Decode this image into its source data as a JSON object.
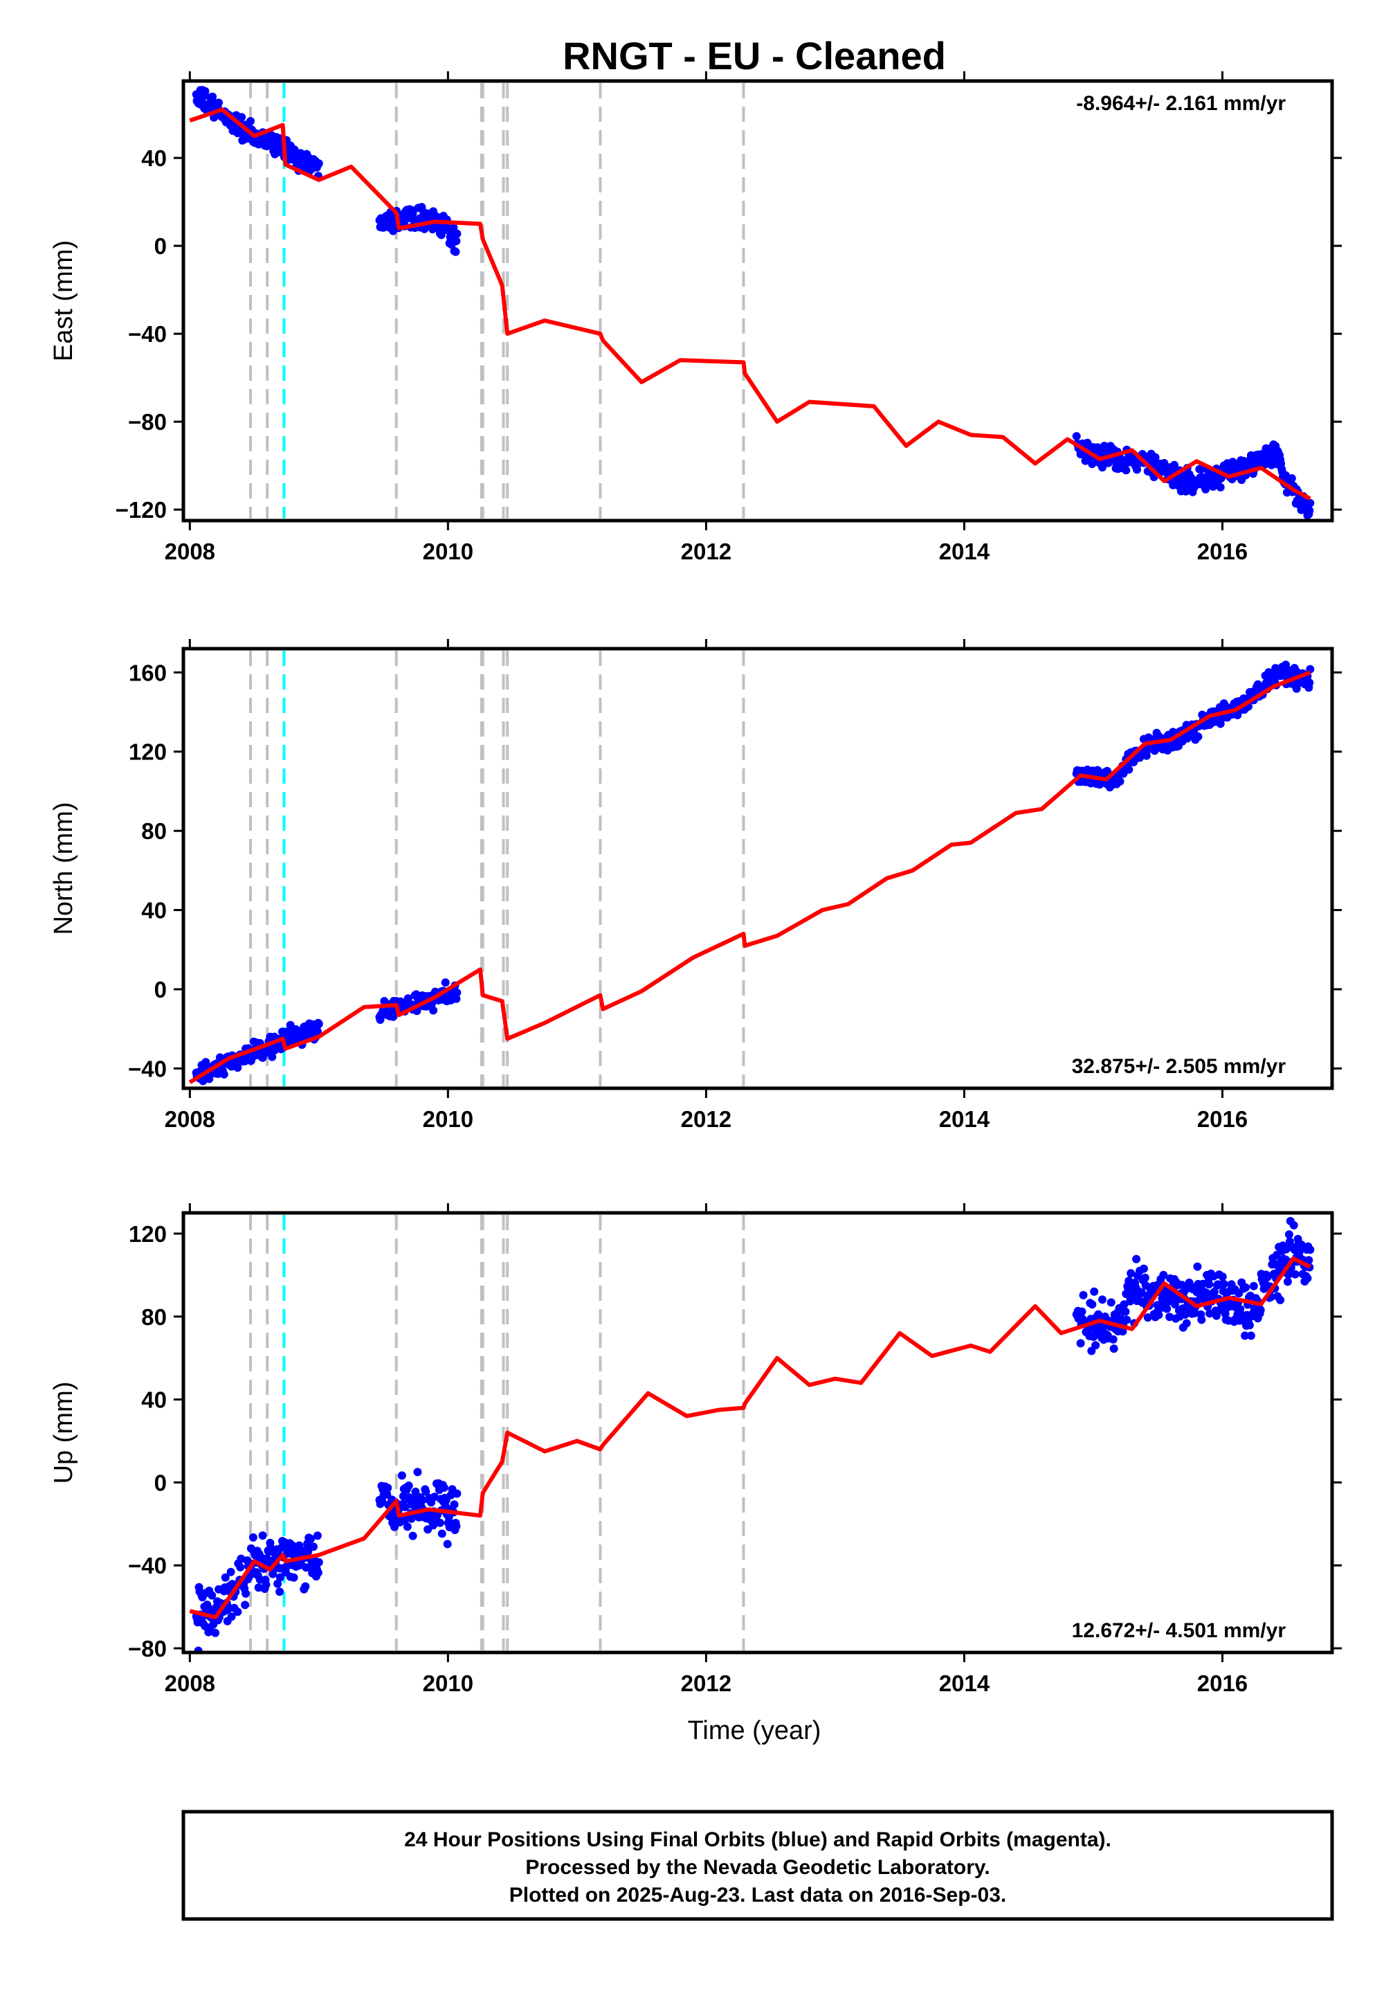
{
  "title": "RNGT  - EU - Cleaned",
  "xlabel": "Time (year)",
  "footer": {
    "line1": "24 Hour Positions Using Final Orbits (blue) and Rapid Orbits (magenta).",
    "line2": "Processed by the Nevada Geodetic Laboratory.",
    "line3": "Plotted on 2025-Aug-23. Last data on 2016-Sep-03."
  },
  "colors": {
    "data_points": "#0000ff",
    "model_line": "#ff0000",
    "event_line": "#c0c0c0",
    "equipment_line": "#00ffff",
    "frame": "#000000"
  },
  "chart_data": [
    {
      "type": "scatter",
      "panel": "east",
      "ylabel": "East (mm)",
      "rate_label": "-8.964+/- 2.161 mm/yr",
      "xlim": [
        2007.95,
        2016.85
      ],
      "ylim": [
        -125,
        75
      ],
      "xticks": [
        2008,
        2010,
        2012,
        2014,
        2016
      ],
      "yticks": [
        -120,
        -80,
        -40,
        0,
        40
      ],
      "events": [
        2008.47,
        2008.6,
        2009.6,
        2010.26,
        2010.27,
        2010.43,
        2010.46,
        2011.18,
        2012.29
      ],
      "equipment_events": [
        2008.73
      ],
      "series": [
        {
          "name": "Final Orbits (blue)",
          "segments": [
            {
              "x": [
                2008.05,
                2008.2,
                2008.35,
                2008.5,
                2008.62,
                2008.72,
                2008.85,
                2009.0
              ],
              "y": [
                68,
                62,
                56,
                49,
                48,
                44,
                40,
                35
              ]
            },
            {
              "x": [
                2009.47,
                2009.6,
                2009.75,
                2009.9,
                2010.0,
                2010.07
              ],
              "y": [
                13,
                12,
                14,
                11,
                6,
                1
              ]
            },
            {
              "x": [
                2014.87,
                2015.0,
                2015.2,
                2015.4,
                2015.6,
                2015.75,
                2015.9,
                2016.1,
                2016.3,
                2016.42,
                2016.5,
                2016.6,
                2016.68
              ],
              "y": [
                -92,
                -95,
                -97,
                -98,
                -105,
                -107,
                -106,
                -103,
                -97,
                -94,
                -109,
                -116,
                -119
              ]
            }
          ]
        }
      ],
      "model": {
        "x": [
          2008.0,
          2008.25,
          2008.5,
          2008.72,
          2008.74,
          2009.0,
          2009.25,
          2009.6,
          2009.62,
          2009.9,
          2010.25,
          2010.27,
          2010.42,
          2010.46,
          2010.75,
          2011.18,
          2011.2,
          2011.5,
          2011.8,
          2012.29,
          2012.3,
          2012.55,
          2012.8,
          2013.3,
          2013.55,
          2013.8,
          2014.05,
          2014.3,
          2014.55,
          2014.8,
          2015.05,
          2015.3,
          2015.55,
          2015.8,
          2016.05,
          2016.3,
          2016.55,
          2016.68
        ],
        "y": [
          57,
          62,
          50,
          55,
          37,
          30,
          36,
          15,
          8,
          11,
          10,
          3,
          -18,
          -40,
          -34,
          -40,
          -43,
          -62,
          -52,
          -53,
          -58,
          -80,
          -71,
          -73,
          -91,
          -80,
          -86,
          -87,
          -99,
          -88,
          -97,
          -93,
          -107,
          -98,
          -105,
          -101,
          -111,
          -115
        ]
      }
    },
    {
      "type": "scatter",
      "panel": "north",
      "ylabel": "North (mm)",
      "rate_label": "32.875+/- 2.505 mm/yr",
      "xlim": [
        2007.95,
        2016.85
      ],
      "ylim": [
        -50,
        172
      ],
      "xticks": [
        2008,
        2010,
        2012,
        2014,
        2016
      ],
      "yticks": [
        -40,
        0,
        40,
        80,
        120,
        160
      ],
      "events": [
        2008.47,
        2008.6,
        2009.6,
        2010.26,
        2010.27,
        2010.43,
        2010.46,
        2011.18,
        2012.29
      ],
      "equipment_events": [
        2008.73
      ],
      "series": [
        {
          "name": "Final Orbits (blue)",
          "segments": [
            {
              "x": [
                2008.05,
                2008.2,
                2008.35,
                2008.5,
                2008.65,
                2008.8,
                2009.0
              ],
              "y": [
                -44,
                -41,
                -36,
                -32,
                -28,
                -24,
                -20
              ]
            },
            {
              "x": [
                2009.47,
                2009.6,
                2009.75,
                2009.9,
                2010.07
              ],
              "y": [
                -13,
                -9,
                -7,
                -4,
                -1
              ]
            },
            {
              "x": [
                2014.87,
                2015.0,
                2015.15,
                2015.3,
                2015.5,
                2015.7,
                2015.9,
                2016.1,
                2016.3,
                2016.45,
                2016.55,
                2016.68
              ],
              "y": [
                107,
                108,
                104,
                118,
                124,
                128,
                136,
                142,
                150,
                161,
                156,
                159
              ]
            }
          ]
        }
      ],
      "model": {
        "x": [
          2008.0,
          2008.3,
          2008.6,
          2008.72,
          2008.74,
          2009.0,
          2009.35,
          2009.6,
          2009.62,
          2009.9,
          2010.25,
          2010.27,
          2010.42,
          2010.46,
          2010.75,
          2011.18,
          2011.2,
          2011.5,
          2011.9,
          2012.29,
          2012.3,
          2012.55,
          2012.9,
          2013.1,
          2013.4,
          2013.6,
          2013.9,
          2014.05,
          2014.4,
          2014.6,
          2014.9,
          2015.1,
          2015.4,
          2015.6,
          2015.9,
          2016.1,
          2016.4,
          2016.68
        ],
        "y": [
          -47,
          -35,
          -28,
          -25,
          -30,
          -24,
          -9,
          -8,
          -13,
          -4,
          10,
          -3,
          -6,
          -25,
          -17,
          -3,
          -10,
          -1,
          16,
          28,
          22,
          27,
          40,
          43,
          56,
          60,
          73,
          74,
          89,
          91,
          108,
          106,
          124,
          126,
          138,
          141,
          153,
          160
        ]
      }
    },
    {
      "type": "scatter",
      "panel": "up",
      "ylabel": "Up (mm)",
      "rate_label": "12.672+/- 4.501 mm/yr",
      "xlim": [
        2007.95,
        2016.85
      ],
      "ylim": [
        -82,
        130
      ],
      "xticks": [
        2008,
        2010,
        2012,
        2014,
        2016
      ],
      "yticks": [
        -80,
        -40,
        0,
        40,
        80,
        120
      ],
      "events": [
        2008.47,
        2008.6,
        2009.6,
        2010.26,
        2010.27,
        2010.43,
        2010.46,
        2011.18,
        2012.29
      ],
      "equipment_events": [
        2008.73
      ],
      "series": [
        {
          "name": "Final Orbits (blue)",
          "segments": [
            {
              "x": [
                2008.05,
                2008.2,
                2008.35,
                2008.5,
                2008.65,
                2008.8,
                2009.0
              ],
              "y": [
                -66,
                -62,
                -50,
                -40,
                -37,
                -37,
                -40
              ]
            },
            {
              "x": [
                2009.47,
                2009.6,
                2009.75,
                2009.9,
                2010.07
              ],
              "y": [
                -8,
                -12,
                -13,
                -14,
                -14
              ]
            },
            {
              "x": [
                2014.87,
                2015.0,
                2015.15,
                2015.3,
                2015.5,
                2015.7,
                2015.9,
                2016.1,
                2016.2,
                2016.4,
                2016.55,
                2016.68
              ],
              "y": [
                78,
                77,
                73,
                92,
                90,
                87,
                90,
                85,
                82,
                100,
                112,
                106
              ]
            }
          ]
        }
      ],
      "model": {
        "x": [
          2008.0,
          2008.2,
          2008.5,
          2008.62,
          2008.72,
          2008.74,
          2009.0,
          2009.35,
          2009.6,
          2009.62,
          2009.85,
          2010.25,
          2010.27,
          2010.42,
          2010.46,
          2010.75,
          2011.0,
          2011.18,
          2011.2,
          2011.55,
          2011.85,
          2012.1,
          2012.29,
          2012.3,
          2012.55,
          2012.8,
          2013.0,
          2013.2,
          2013.5,
          2013.75,
          2014.05,
          2014.2,
          2014.55,
          2014.75,
          2015.05,
          2015.3,
          2015.55,
          2015.8,
          2016.05,
          2016.3,
          2016.55,
          2016.68
        ],
        "y": [
          -62,
          -65,
          -38,
          -42,
          -35,
          -38,
          -35,
          -27,
          -9,
          -16,
          -13,
          -16,
          -5,
          10,
          24,
          15,
          20,
          16,
          18,
          43,
          32,
          35,
          36,
          38,
          60,
          47,
          50,
          48,
          72,
          61,
          66,
          63,
          85,
          72,
          78,
          74,
          96,
          85,
          89,
          86,
          108,
          104
        ]
      }
    }
  ]
}
